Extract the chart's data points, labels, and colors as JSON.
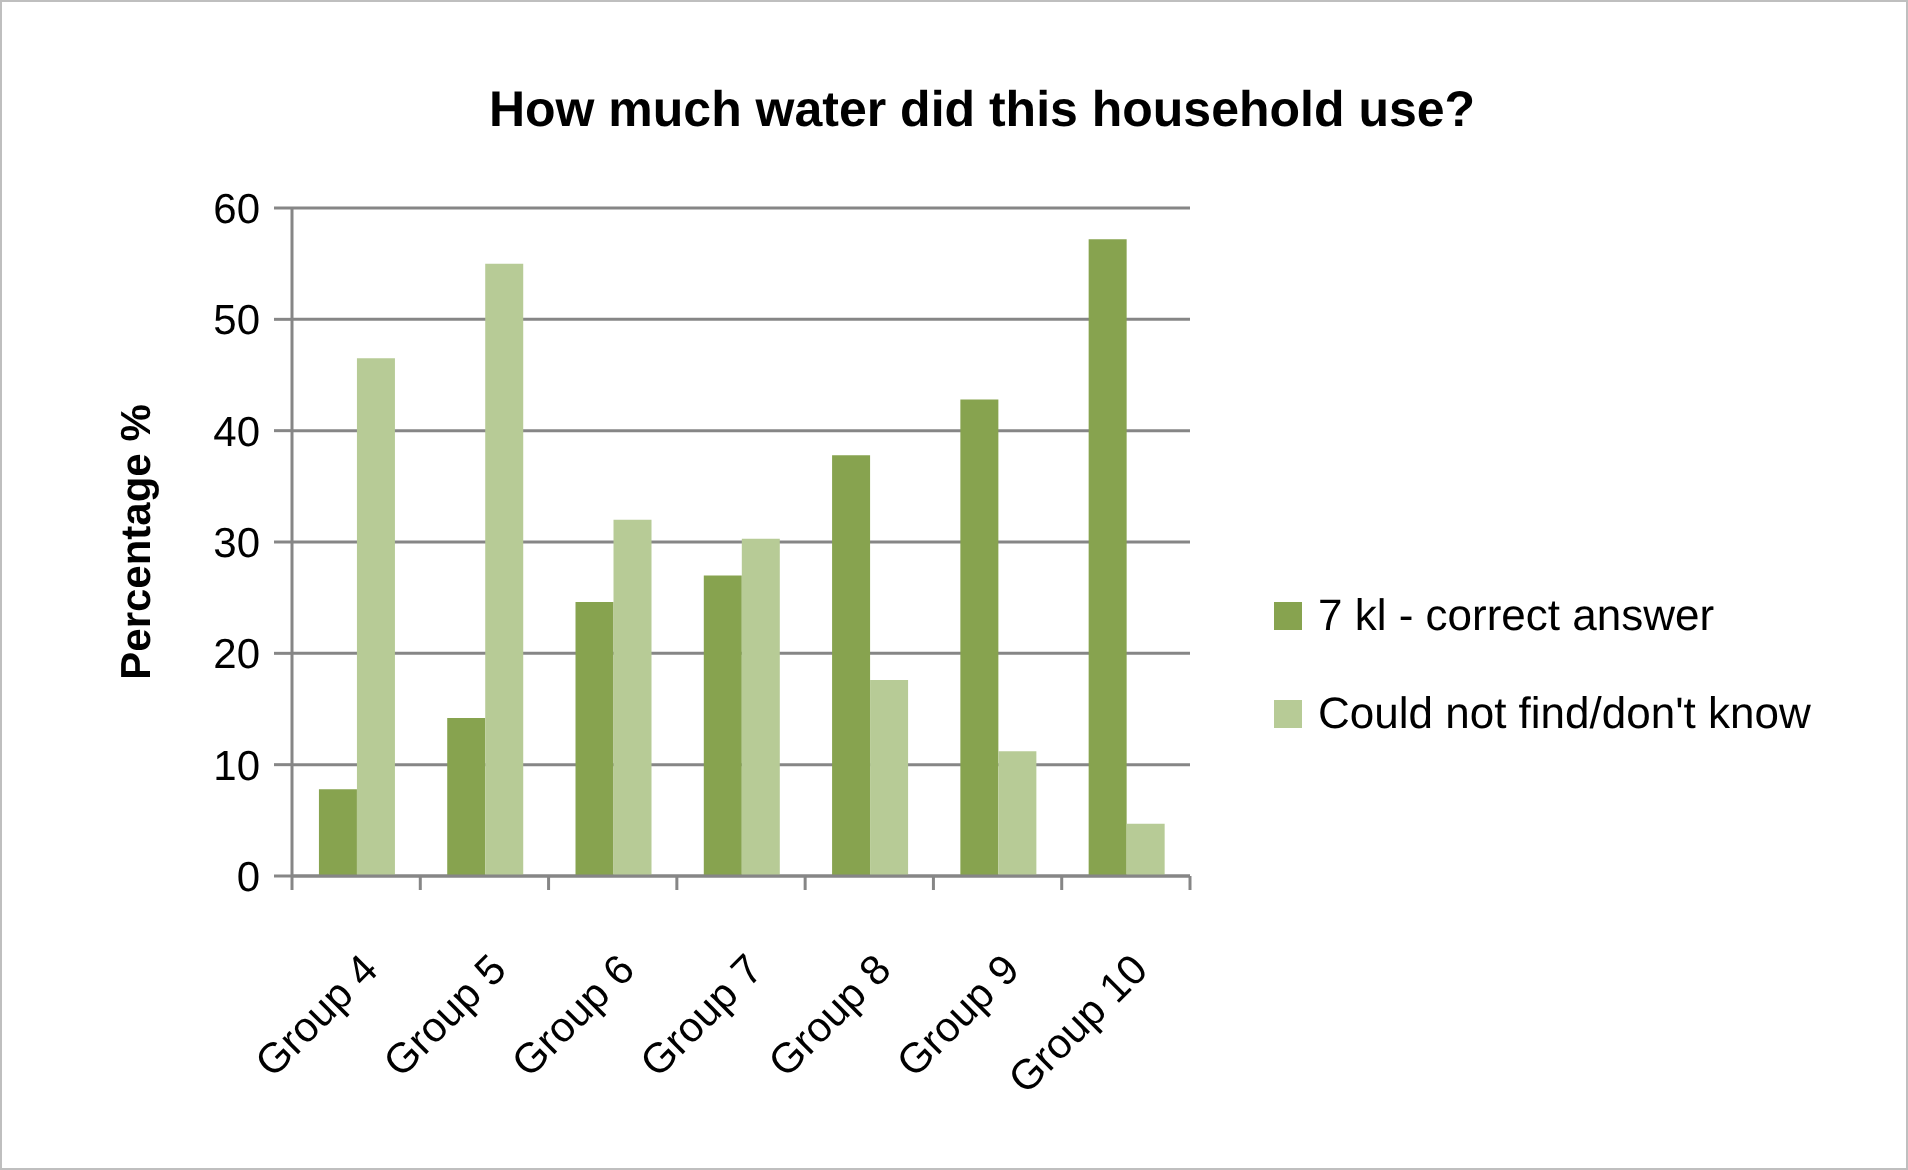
{
  "chart_data": {
    "type": "bar",
    "title": "How much water did this household use?",
    "ylabel": "Percentage %",
    "categories": [
      "Group 4",
      "Group 5",
      "Group 6",
      "Group 7",
      "Group 8",
      "Group 9",
      "Group 10"
    ],
    "series": [
      {
        "name": "7 kl - correct answer",
        "color": "#87a34f",
        "values": [
          7.8,
          14.2,
          24.6,
          27.0,
          37.8,
          42.8,
          57.2
        ]
      },
      {
        "name": "Could not find/don't know",
        "color": "#b7cb96",
        "values": [
          46.5,
          55.0,
          32.0,
          30.3,
          17.6,
          11.2,
          4.7
        ]
      }
    ],
    "ylim": [
      0,
      60
    ],
    "yticks": [
      0,
      10,
      20,
      30,
      40,
      50,
      60
    ],
    "grid": "y",
    "legend": "right"
  }
}
